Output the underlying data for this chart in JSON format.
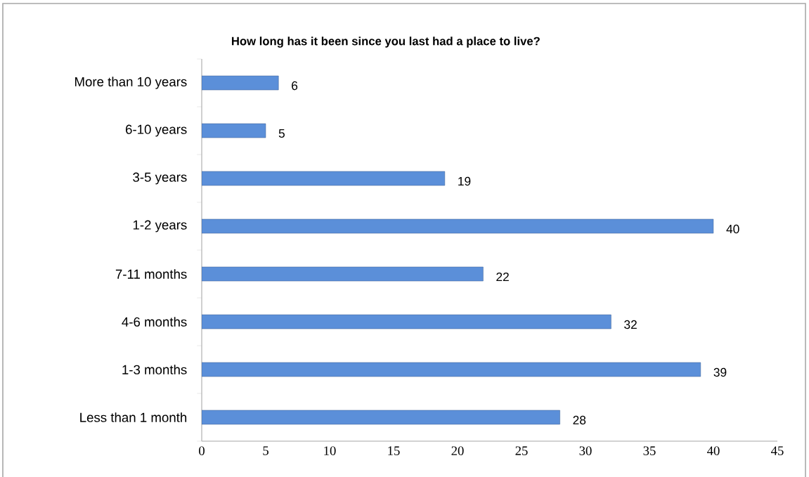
{
  "chart_data": {
    "type": "bar",
    "orientation": "horizontal",
    "title": "How long has it been since you last had a place to live?",
    "categories": [
      "More than 10 years",
      "6-10 years",
      "3-5 years",
      "1-2 years",
      "7-11 months",
      "4-6 months",
      "1-3 months",
      "Less than 1 month"
    ],
    "values": [
      6,
      5,
      19,
      40,
      22,
      32,
      39,
      28
    ],
    "color": "#5b8fd9",
    "data_labels": true,
    "grid": false,
    "xlim": [
      0,
      45
    ],
    "xticks": [
      0,
      5,
      10,
      15,
      20,
      25,
      30,
      35,
      40,
      45
    ]
  }
}
